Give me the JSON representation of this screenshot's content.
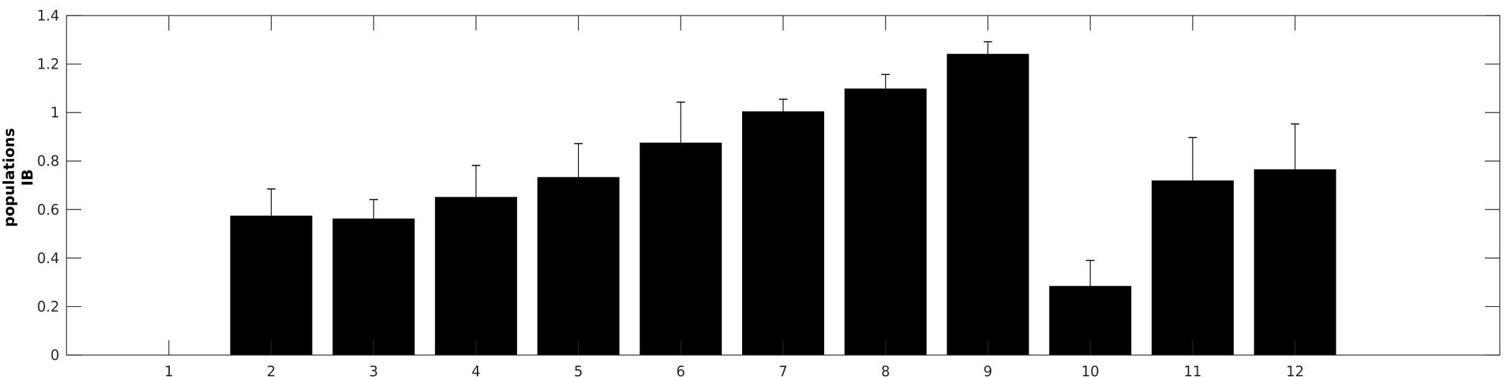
{
  "chart_data": {
    "type": "bar",
    "categories": [
      "1",
      "2",
      "3",
      "4",
      "5",
      "6",
      "7",
      "8",
      "9",
      "10",
      "11",
      "12"
    ],
    "values": [
      0,
      0.575,
      0.563,
      0.652,
      0.734,
      0.876,
      1.005,
      1.099,
      1.242,
      0.285,
      0.72,
      0.766
    ],
    "error_upper": [
      0,
      0.11,
      0.078,
      0.13,
      0.138,
      0.167,
      0.05,
      0.058,
      0.05,
      0.105,
      0.177,
      0.187
    ],
    "ylabel_lines": [
      "populations",
      "IB"
    ],
    "ylim": [
      0,
      1.4
    ],
    "yticks": [
      "0",
      "0.2",
      "0.4",
      "0.6",
      "0.8",
      "1",
      "1.2",
      "1.4"
    ],
    "xlim": [
      0,
      14
    ],
    "grid": false,
    "bar_color": "#000000",
    "axis_color": "#262626"
  }
}
